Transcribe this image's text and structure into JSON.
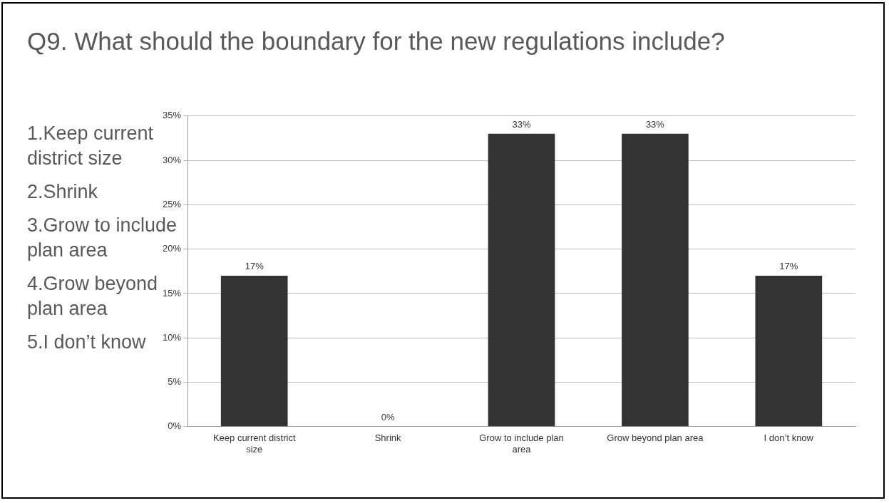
{
  "chart_data": {
    "type": "bar",
    "title": "Q9. What should the boundary for the new regulations include?",
    "annotations": [
      "1.Keep current district size",
      "2.Shrink",
      "3.Grow to include plan area",
      "4.Grow beyond plan area",
      "5.I don’t know"
    ],
    "categories": [
      "Keep current district size",
      "Shrink",
      "Grow to include plan area",
      "Grow beyond plan area",
      "I don’t know"
    ],
    "values": [
      17,
      0,
      33,
      33,
      17
    ],
    "value_labels": [
      "17%",
      "0%",
      "33%",
      "33%",
      "17%"
    ],
    "color": "#333333",
    "ylim": [
      0,
      35
    ],
    "yticks": [
      {
        "value": 0,
        "label": "0%"
      },
      {
        "value": 5,
        "label": "5%"
      },
      {
        "value": 10,
        "label": "10%"
      },
      {
        "value": 15,
        "label": "15%"
      },
      {
        "value": 20,
        "label": "20%"
      },
      {
        "value": 25,
        "label": "25%"
      },
      {
        "value": 30,
        "label": "30%"
      },
      {
        "value": 35,
        "label": "35%"
      }
    ],
    "grid": "y",
    "legend": false
  }
}
